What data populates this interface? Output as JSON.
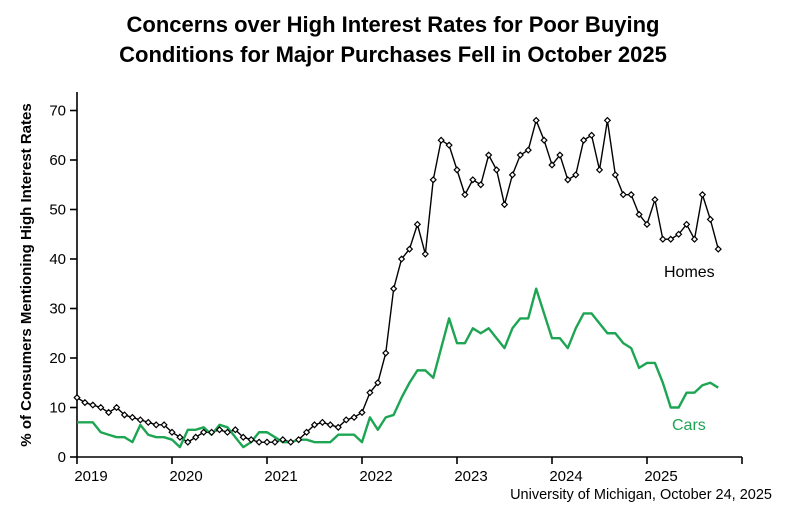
{
  "title": {
    "line1": "Concerns over High Interest Rates for Poor Buying",
    "line2": "Conditions for Major Purchases Fell in October 2025"
  },
  "caption": "University of Michigan, October 24, 2025",
  "colors": {
    "homes": "#000000",
    "cars": "#1ea553",
    "background": "#ffffff"
  },
  "chart_data": {
    "type": "line",
    "title": "Concerns over High Interest Rates for Poor Buying Conditions for Major Purchases Fell in October 2025",
    "xlabel": "",
    "ylabel": "% of Consumers Mentioning High Interest Rates",
    "x_start": "2019-01",
    "x_end": "2025-10",
    "frequency": "monthly",
    "ylim": [
      0,
      70
    ],
    "y_ticks": [
      0,
      10,
      20,
      30,
      40,
      50,
      60,
      70
    ],
    "x_ticks": [
      "2019",
      "2020",
      "2021",
      "2022",
      "2023",
      "2024",
      "2025"
    ],
    "grid": false,
    "legend_position": "inline-labels",
    "series": [
      {
        "name": "Homes",
        "color": "#000000",
        "marker": "open-diamond",
        "values": [
          12,
          11,
          10.5,
          10,
          9,
          10,
          8.5,
          8,
          7.5,
          7,
          6.5,
          6.5,
          5,
          4,
          3,
          4,
          5,
          5,
          5.5,
          5,
          5.5,
          4,
          3.5,
          3,
          3,
          3,
          3.5,
          3,
          3.5,
          5,
          6.5,
          7,
          6.5,
          6,
          7.5,
          8,
          9,
          13,
          15,
          21,
          34,
          40,
          42,
          47,
          41,
          56,
          64,
          63,
          58,
          53,
          56,
          55,
          61,
          58,
          51,
          57,
          61,
          62,
          68,
          64,
          59,
          61,
          56,
          57,
          64,
          65,
          58,
          68,
          57,
          53,
          53,
          49,
          47,
          52,
          44,
          44,
          45,
          47,
          44,
          53,
          48,
          42
        ]
      },
      {
        "name": "Cars",
        "color": "#1ea553",
        "marker": "none",
        "values": [
          7,
          7,
          7,
          5,
          4.5,
          4,
          4,
          3,
          6.5,
          4.5,
          4,
          4,
          3.5,
          2,
          5.5,
          5.5,
          6,
          4.5,
          6.5,
          6,
          4,
          2,
          3,
          5,
          5,
          4,
          3,
          3,
          3.5,
          3.5,
          3,
          3,
          3,
          4.5,
          4.5,
          4.5,
          3,
          8,
          5.5,
          8,
          8.5,
          12,
          15,
          17.5,
          17.5,
          16,
          22,
          28,
          23,
          23,
          26,
          25,
          26,
          24,
          22,
          26,
          28,
          28,
          34,
          29,
          24,
          24,
          22,
          26,
          29,
          29,
          27,
          25,
          25,
          23,
          22,
          18,
          19,
          19,
          15,
          10,
          10,
          13,
          13,
          14.5,
          15,
          14
        ]
      }
    ]
  }
}
